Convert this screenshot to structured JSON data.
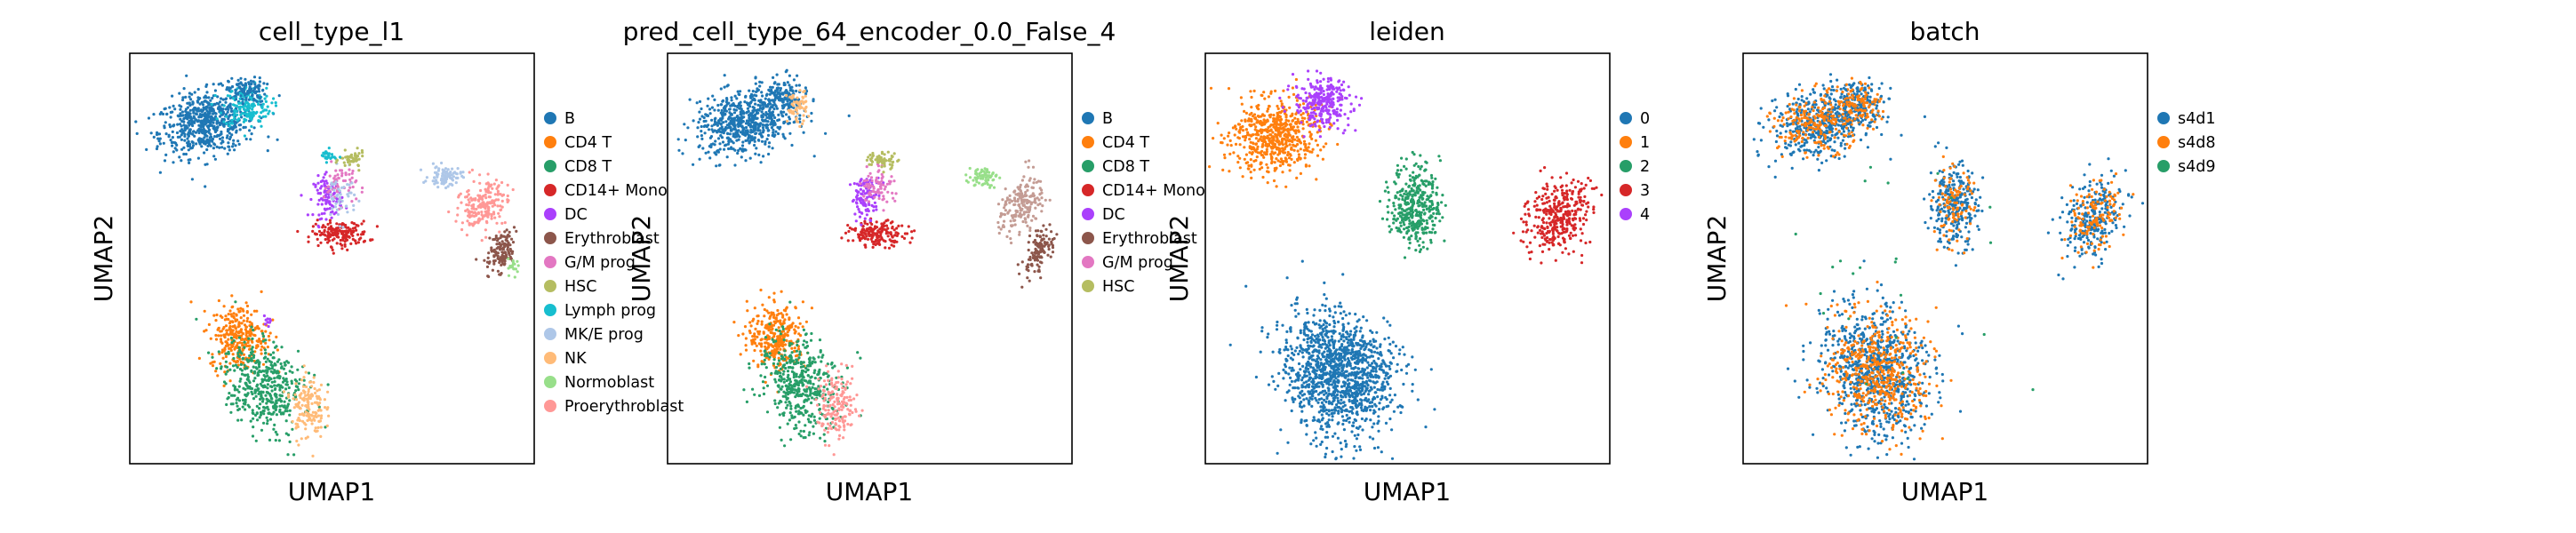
{
  "figure": {
    "facecolor": "#ffffff"
  },
  "chart_data": [
    {
      "type": "scatter",
      "title": "cell_type_l1",
      "xlabel": "UMAP1",
      "ylabel": "UMAP2",
      "grid": false,
      "ticks": false,
      "legend_position": "right-outside",
      "legend": [
        {
          "label": "B",
          "color": "#1f77b4"
        },
        {
          "label": "CD4 T",
          "color": "#ff7f0e"
        },
        {
          "label": "CD8 T",
          "color": "#279e68"
        },
        {
          "label": "CD14+ Mono",
          "color": "#d62728"
        },
        {
          "label": "DC",
          "color": "#aa40fc"
        },
        {
          "label": "Erythroblast",
          "color": "#8c564b"
        },
        {
          "label": "G/M prog",
          "color": "#e377c2"
        },
        {
          "label": "HSC",
          "color": "#b5bd61"
        },
        {
          "label": "Lymph prog",
          "color": "#17becf"
        },
        {
          "label": "MK/E prog",
          "color": "#aec7e8"
        },
        {
          "label": "NK",
          "color": "#ffbb78"
        },
        {
          "label": "Normoblast",
          "color": "#98df8a"
        },
        {
          "label": "Proerythroblast",
          "color": "#ff9896"
        }
      ],
      "clusters": [
        {
          "color": "#1f77b4",
          "cx": 0.19,
          "cy": 0.83,
          "rx": 0.12,
          "ry": 0.075,
          "n": 620,
          "angle": 0.2
        },
        {
          "color": "#17becf",
          "cx": 0.29,
          "cy": 0.87,
          "rx": 0.06,
          "ry": 0.05,
          "n": 160
        },
        {
          "color": "#1f77b4",
          "cx": 0.29,
          "cy": 0.91,
          "rx": 0.045,
          "ry": 0.03,
          "n": 100
        },
        {
          "color": "#d62728",
          "cx": 0.52,
          "cy": 0.56,
          "rx": 0.07,
          "ry": 0.03,
          "n": 170
        },
        {
          "color": "#aa40fc",
          "cx": 0.49,
          "cy": 0.65,
          "rx": 0.035,
          "ry": 0.05,
          "n": 100
        },
        {
          "color": "#e377c2",
          "cx": 0.52,
          "cy": 0.68,
          "rx": 0.04,
          "ry": 0.05,
          "n": 60
        },
        {
          "color": "#aec7e8",
          "cx": 0.52,
          "cy": 0.65,
          "rx": 0.04,
          "ry": 0.06,
          "n": 50
        },
        {
          "color": "#b5bd61",
          "cx": 0.55,
          "cy": 0.74,
          "rx": 0.03,
          "ry": 0.02,
          "n": 50
        },
        {
          "color": "#17becf",
          "cx": 0.49,
          "cy": 0.75,
          "rx": 0.02,
          "ry": 0.015,
          "n": 25
        },
        {
          "color": "#aec7e8",
          "cx": 0.78,
          "cy": 0.7,
          "rx": 0.04,
          "ry": 0.025,
          "n": 90
        },
        {
          "color": "#ff9896",
          "cx": 0.87,
          "cy": 0.63,
          "rx": 0.05,
          "ry": 0.07,
          "n": 200,
          "angle": -0.5
        },
        {
          "color": "#8c564b",
          "cx": 0.92,
          "cy": 0.52,
          "rx": 0.03,
          "ry": 0.06,
          "n": 130,
          "angle": -0.4
        },
        {
          "color": "#98df8a",
          "cx": 0.95,
          "cy": 0.48,
          "rx": 0.015,
          "ry": 0.02,
          "n": 20
        },
        {
          "color": "#ff7f0e",
          "cx": 0.27,
          "cy": 0.31,
          "rx": 0.07,
          "ry": 0.08,
          "n": 300
        },
        {
          "color": "#279e68",
          "cx": 0.33,
          "cy": 0.19,
          "rx": 0.09,
          "ry": 0.12,
          "n": 450,
          "angle": 0.4
        },
        {
          "color": "#ffbb78",
          "cx": 0.44,
          "cy": 0.14,
          "rx": 0.04,
          "ry": 0.08,
          "n": 150
        },
        {
          "color": "#aa40fc",
          "cx": 0.34,
          "cy": 0.35,
          "rx": 0.01,
          "ry": 0.01,
          "n": 10
        }
      ]
    },
    {
      "type": "scatter",
      "title": "pred_cell_type_64_encoder_0.0_False_4",
      "xlabel": "UMAP1",
      "ylabel": "UMAP2",
      "grid": false,
      "ticks": false,
      "legend_position": "right-outside",
      "legend": [
        {
          "label": "B",
          "color": "#1f77b4"
        },
        {
          "label": "CD4 T",
          "color": "#ff7f0e"
        },
        {
          "label": "CD8 T",
          "color": "#279e68"
        },
        {
          "label": "CD14+ Mono",
          "color": "#d62728"
        },
        {
          "label": "DC",
          "color": "#aa40fc"
        },
        {
          "label": "Erythroblast",
          "color": "#8c564b"
        },
        {
          "label": "G/M prog",
          "color": "#e377c2"
        },
        {
          "label": "HSC",
          "color": "#b5bd61"
        }
      ],
      "clusters": [
        {
          "color": "#1f77b4",
          "cx": 0.19,
          "cy": 0.83,
          "rx": 0.12,
          "ry": 0.075,
          "n": 620,
          "angle": 0.2
        },
        {
          "color": "#1f77b4",
          "cx": 0.29,
          "cy": 0.89,
          "rx": 0.055,
          "ry": 0.05,
          "n": 160
        },
        {
          "color": "#ffbb78",
          "cx": 0.32,
          "cy": 0.87,
          "rx": 0.025,
          "ry": 0.04,
          "n": 60
        },
        {
          "color": "#d62728",
          "cx": 0.52,
          "cy": 0.56,
          "rx": 0.07,
          "ry": 0.03,
          "n": 170
        },
        {
          "color": "#aa40fc",
          "cx": 0.49,
          "cy": 0.65,
          "rx": 0.035,
          "ry": 0.05,
          "n": 100
        },
        {
          "color": "#e377c2",
          "cx": 0.52,
          "cy": 0.68,
          "rx": 0.04,
          "ry": 0.05,
          "n": 80
        },
        {
          "color": "#b5bd61",
          "cx": 0.53,
          "cy": 0.74,
          "rx": 0.04,
          "ry": 0.02,
          "n": 60
        },
        {
          "color": "#98df8a",
          "cx": 0.78,
          "cy": 0.7,
          "rx": 0.035,
          "ry": 0.025,
          "n": 70
        },
        {
          "color": "#c49c94",
          "cx": 0.87,
          "cy": 0.63,
          "rx": 0.05,
          "ry": 0.07,
          "n": 200,
          "angle": -0.5
        },
        {
          "color": "#8c564b",
          "cx": 0.92,
          "cy": 0.52,
          "rx": 0.03,
          "ry": 0.06,
          "n": 120,
          "angle": -0.4
        },
        {
          "color": "#ff7f0e",
          "cx": 0.27,
          "cy": 0.31,
          "rx": 0.07,
          "ry": 0.08,
          "n": 300
        },
        {
          "color": "#279e68",
          "cx": 0.33,
          "cy": 0.19,
          "rx": 0.09,
          "ry": 0.12,
          "n": 450,
          "angle": 0.4
        },
        {
          "color": "#ff9896",
          "cx": 0.42,
          "cy": 0.14,
          "rx": 0.05,
          "ry": 0.08,
          "n": 170
        }
      ]
    },
    {
      "type": "scatter",
      "title": "leiden",
      "xlabel": "UMAP1",
      "ylabel": "UMAP2",
      "grid": false,
      "ticks": false,
      "legend_position": "right-outside",
      "legend": [
        {
          "label": "0",
          "color": "#1f77b4"
        },
        {
          "label": "1",
          "color": "#ff7f0e"
        },
        {
          "label": "2",
          "color": "#279e68"
        },
        {
          "label": "3",
          "color": "#d62728"
        },
        {
          "label": "4",
          "color": "#aa40fc"
        }
      ],
      "clusters": [
        {
          "color": "#ff7f0e",
          "cx": 0.17,
          "cy": 0.8,
          "rx": 0.11,
          "ry": 0.09,
          "n": 600,
          "angle": 0.2
        },
        {
          "color": "#aa40fc",
          "cx": 0.29,
          "cy": 0.88,
          "rx": 0.07,
          "ry": 0.06,
          "n": 280
        },
        {
          "color": "#279e68",
          "cx": 0.52,
          "cy": 0.63,
          "rx": 0.06,
          "ry": 0.1,
          "n": 380
        },
        {
          "color": "#d62728",
          "cx": 0.87,
          "cy": 0.6,
          "rx": 0.07,
          "ry": 0.1,
          "n": 360,
          "angle": -0.5
        },
        {
          "color": "#1f77b4",
          "cx": 0.33,
          "cy": 0.22,
          "rx": 0.13,
          "ry": 0.16,
          "n": 1300,
          "angle": 0.4
        }
      ]
    },
    {
      "type": "scatter",
      "title": "batch",
      "xlabel": "UMAP1",
      "ylabel": "UMAP2",
      "grid": false,
      "ticks": false,
      "legend_position": "right-outside",
      "legend": [
        {
          "label": "s4d1",
          "color": "#1f77b4"
        },
        {
          "label": "s4d8",
          "color": "#ff7f0e"
        },
        {
          "label": "s4d9",
          "color": "#279e68"
        }
      ],
      "clusters": [
        {
          "color": "#1f77b4",
          "cx": 0.19,
          "cy": 0.83,
          "rx": 0.12,
          "ry": 0.08,
          "n": 450,
          "angle": 0.2
        },
        {
          "color": "#ff7f0e",
          "cx": 0.19,
          "cy": 0.83,
          "rx": 0.11,
          "ry": 0.07,
          "n": 250,
          "angle": 0.2
        },
        {
          "color": "#1f77b4",
          "cx": 0.29,
          "cy": 0.88,
          "rx": 0.06,
          "ry": 0.05,
          "n": 150
        },
        {
          "color": "#ff7f0e",
          "cx": 0.29,
          "cy": 0.88,
          "rx": 0.05,
          "ry": 0.05,
          "n": 90
        },
        {
          "color": "#1f77b4",
          "cx": 0.52,
          "cy": 0.63,
          "rx": 0.06,
          "ry": 0.1,
          "n": 280
        },
        {
          "color": "#ff7f0e",
          "cx": 0.52,
          "cy": 0.63,
          "rx": 0.05,
          "ry": 0.09,
          "n": 100
        },
        {
          "color": "#1f77b4",
          "cx": 0.87,
          "cy": 0.6,
          "rx": 0.07,
          "ry": 0.1,
          "n": 260,
          "angle": -0.5
        },
        {
          "color": "#ff7f0e",
          "cx": 0.87,
          "cy": 0.6,
          "rx": 0.06,
          "ry": 0.09,
          "n": 130,
          "angle": -0.5
        },
        {
          "color": "#1f77b4",
          "cx": 0.33,
          "cy": 0.22,
          "rx": 0.13,
          "ry": 0.16,
          "n": 750,
          "angle": 0.4
        },
        {
          "color": "#ff7f0e",
          "cx": 0.33,
          "cy": 0.22,
          "rx": 0.12,
          "ry": 0.15,
          "n": 500,
          "angle": 0.4
        },
        {
          "color": "#279e68",
          "cx": 0.4,
          "cy": 0.5,
          "rx": 0.35,
          "ry": 0.35,
          "n": 25
        }
      ]
    }
  ]
}
